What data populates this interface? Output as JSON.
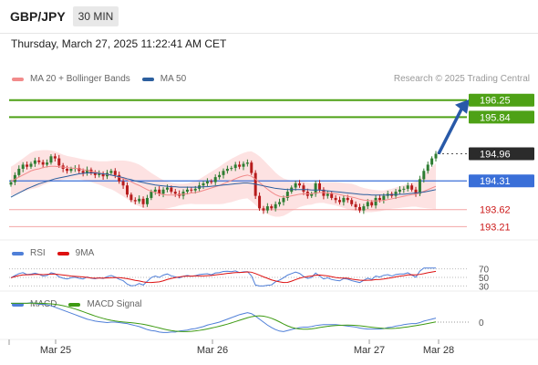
{
  "header": {
    "symbol": "GBP/JPY",
    "timeframe": "30 MIN",
    "datetime": "Thursday, March 27, 2025 11:22:41 AM CET",
    "credit": "Research © 2025 Trading Central"
  },
  "legends": {
    "main": [
      {
        "label": "MA 20 + Bollinger Bands",
        "color": "#f28b8b"
      },
      {
        "label": "MA 50",
        "color": "#2c5f9e"
      }
    ],
    "rsi": [
      {
        "label": "RSI",
        "color": "#4f7fd8"
      },
      {
        "label": "9MA",
        "color": "#dd1111"
      }
    ],
    "macd": [
      {
        "label": "MACD",
        "color": "#4f7fd8"
      },
      {
        "label": "MACD Signal",
        "color": "#3d9a12"
      }
    ]
  },
  "colors": {
    "resistance": "#4ea116",
    "support_line": "#3a6fd8",
    "current_price": "#2b2b2b",
    "lower_support": "#cc1a1a",
    "band_fill": "#fde2e2",
    "up_candle": "#2e7d32",
    "down_candle": "#b71c1c",
    "arrow": "#2859a8"
  },
  "chart_data": {
    "type": "candlestick",
    "x_labels": [
      "Mar 25",
      "Mar 26",
      "Mar 27",
      "Mar 28"
    ],
    "y_range": [
      193.0,
      196.55
    ],
    "levels": [
      {
        "name": "resistance-2",
        "value": 196.25,
        "label": "196.25",
        "style": "resistance"
      },
      {
        "name": "resistance-1",
        "value": 195.84,
        "label": "195.84",
        "style": "resistance"
      },
      {
        "name": "current-price",
        "value": 194.96,
        "label": "194.96",
        "style": "current"
      },
      {
        "name": "pivot",
        "value": 194.31,
        "label": "194.31",
        "style": "pivot"
      },
      {
        "name": "support-1",
        "value": 193.62,
        "label": "193.62",
        "style": "support"
      },
      {
        "name": "support-2",
        "value": 193.21,
        "label": "193.21",
        "style": "support"
      }
    ],
    "close": [
      194.28,
      194.45,
      194.6,
      194.7,
      194.65,
      194.72,
      194.8,
      194.76,
      194.7,
      194.75,
      194.9,
      194.85,
      194.68,
      194.6,
      194.55,
      194.6,
      194.62,
      194.55,
      194.5,
      194.58,
      194.5,
      194.45,
      194.48,
      194.42,
      194.5,
      194.55,
      194.45,
      194.3,
      194.2,
      193.98,
      193.85,
      193.82,
      193.88,
      193.75,
      193.9,
      194.05,
      194.1,
      194.0,
      194.1,
      194.15,
      194.05,
      194.0,
      193.95,
      194.05,
      194.1,
      194.08,
      194.12,
      194.2,
      194.25,
      194.3,
      194.28,
      194.4,
      194.45,
      194.55,
      194.6,
      194.62,
      194.7,
      194.65,
      194.72,
      194.75,
      194.5,
      193.95,
      193.65,
      193.6,
      193.7,
      193.65,
      193.75,
      193.8,
      193.9,
      194.05,
      194.15,
      194.25,
      194.2,
      194.05,
      193.95,
      194.0,
      194.25,
      194.1,
      193.95,
      194.0,
      193.9,
      193.85,
      193.8,
      193.9,
      193.85,
      193.75,
      193.68,
      193.6,
      193.7,
      193.8,
      193.72,
      193.9,
      193.85,
      193.95,
      194.0,
      193.95,
      194.05,
      194.1,
      194.12,
      194.2,
      194.1,
      194.0,
      194.35,
      194.55,
      194.7,
      194.85,
      194.96
    ],
    "ma20": [
      194.3,
      194.35,
      194.4,
      194.45,
      194.5,
      194.55,
      194.58,
      194.6,
      194.63,
      194.65,
      194.66,
      194.66,
      194.65,
      194.64,
      194.63,
      194.62,
      194.61,
      194.6,
      194.58,
      194.56,
      194.54,
      194.52,
      194.5,
      194.48,
      194.46,
      194.45,
      194.43,
      194.4,
      194.37,
      194.33,
      194.29,
      194.24,
      194.2,
      194.15,
      194.1,
      194.06,
      194.03,
      194.0,
      193.98,
      193.97,
      193.97,
      193.97,
      193.98,
      193.99,
      194.0,
      194.02,
      194.03,
      194.05,
      194.08,
      194.11,
      194.14,
      194.17,
      194.2,
      194.24,
      194.28,
      194.32,
      194.36,
      194.4,
      194.43,
      194.45,
      194.42,
      194.35,
      194.27,
      194.19,
      194.11,
      194.04,
      193.98,
      193.94,
      193.92,
      193.93,
      193.95,
      193.97,
      193.99,
      194.0,
      194.0,
      194.0,
      194.02,
      194.03,
      194.03,
      194.02,
      194.01,
      194.0,
      193.98,
      193.96,
      193.94,
      193.92,
      193.9,
      193.87,
      193.85,
      193.84,
      193.83,
      193.83,
      193.83,
      193.84,
      193.86,
      193.88,
      193.9,
      193.92,
      193.94,
      193.96,
      193.98,
      193.99,
      194.02,
      194.06,
      194.1,
      194.14,
      194.18
    ],
    "ma50": [
      193.92,
      193.97,
      194.02,
      194.07,
      194.12,
      194.16,
      194.2,
      194.24,
      194.27,
      194.3,
      194.33,
      194.36,
      194.38,
      194.4,
      194.42,
      194.44,
      194.46,
      194.48,
      194.49,
      194.5,
      194.5,
      194.5,
      194.49,
      194.48,
      194.47,
      194.45,
      194.43,
      194.41,
      194.39,
      194.36,
      194.34,
      194.31,
      194.29,
      194.27,
      194.25,
      194.23,
      194.21,
      194.2,
      194.19,
      194.18,
      194.17,
      194.17,
      194.16,
      194.16,
      194.16,
      194.16,
      194.16,
      194.16,
      194.17,
      194.17,
      194.18,
      194.19,
      194.2,
      194.21,
      194.22,
      194.23,
      194.24,
      194.25,
      194.26,
      194.26,
      194.25,
      194.23,
      194.21,
      194.19,
      194.17,
      194.15,
      194.13,
      194.12,
      194.11,
      194.1,
      194.1,
      194.1,
      194.1,
      194.1,
      194.1,
      194.09,
      194.09,
      194.09,
      194.08,
      194.07,
      194.06,
      194.05,
      194.04,
      194.03,
      194.02,
      194.01,
      194.0,
      193.99,
      193.98,
      193.98,
      193.97,
      193.97,
      193.97,
      193.97,
      193.97,
      193.98,
      193.98,
      193.99,
      193.99,
      194.0,
      194.01,
      194.02,
      194.03,
      194.04,
      194.06,
      194.08,
      194.1
    ],
    "bb_width": [
      0.35,
      0.36,
      0.38,
      0.4,
      0.42,
      0.44,
      0.45,
      0.44,
      0.42,
      0.4,
      0.38,
      0.36,
      0.33,
      0.3,
      0.28,
      0.27,
      0.26,
      0.25,
      0.25,
      0.25,
      0.26,
      0.27,
      0.28,
      0.3,
      0.32,
      0.34,
      0.37,
      0.4,
      0.43,
      0.46,
      0.48,
      0.5,
      0.5,
      0.49,
      0.47,
      0.44,
      0.41,
      0.38,
      0.35,
      0.32,
      0.3,
      0.28,
      0.26,
      0.25,
      0.25,
      0.26,
      0.28,
      0.3,
      0.33,
      0.36,
      0.39,
      0.42,
      0.45,
      0.48,
      0.5,
      0.52,
      0.53,
      0.54,
      0.55,
      0.56,
      0.6,
      0.62,
      0.63,
      0.62,
      0.6,
      0.57,
      0.53,
      0.49,
      0.45,
      0.41,
      0.37,
      0.34,
      0.31,
      0.29,
      0.27,
      0.26,
      0.25,
      0.25,
      0.25,
      0.26,
      0.27,
      0.28,
      0.29,
      0.3,
      0.31,
      0.32,
      0.31,
      0.3,
      0.29,
      0.28,
      0.27,
      0.26,
      0.25,
      0.24,
      0.24,
      0.24,
      0.25,
      0.26,
      0.27,
      0.28,
      0.29,
      0.3,
      0.35,
      0.4,
      0.45,
      0.5,
      0.55
    ],
    "rsi": {
      "axis_labels": [
        "70",
        "50",
        "30"
      ],
      "levels": [
        70,
        50,
        30
      ],
      "range": [
        20,
        80
      ]
    },
    "macd": {
      "axis_labels": [
        "0"
      ],
      "zero": 0,
      "range": [
        -0.25,
        0.25
      ]
    },
    "forecast_target": 196.25
  }
}
